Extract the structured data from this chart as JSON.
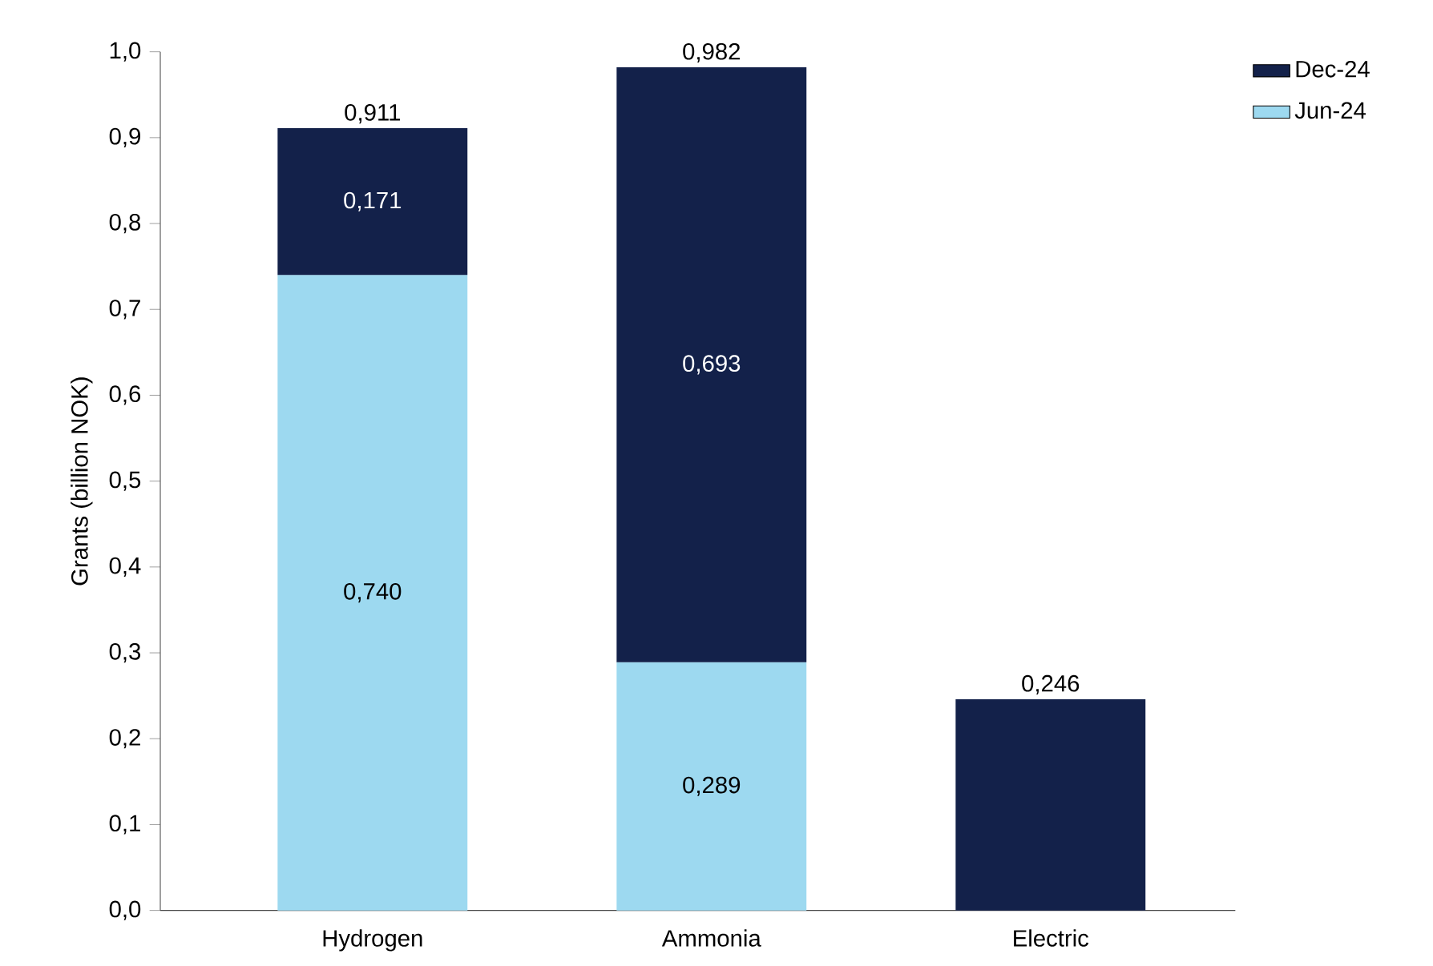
{
  "chart_data": {
    "type": "bar",
    "stacked": true,
    "ylabel": "Grants (billion NOK)",
    "categories": [
      "Hydrogen",
      "Ammonia",
      "Electric"
    ],
    "series": [
      {
        "name": "Jun-24",
        "color": "#9dd9f0",
        "values": [
          0.74,
          0.289,
          null
        ],
        "value_labels": [
          "0,740",
          "0,289",
          null
        ]
      },
      {
        "name": "Dec-24",
        "color": "#13214a",
        "values": [
          0.171,
          0.693,
          0.246
        ],
        "value_labels": [
          "0,171",
          "0,693",
          null
        ]
      }
    ],
    "totals": [
      "0,911",
      "0,982",
      "0,246"
    ],
    "ylim": [
      0,
      1
    ],
    "yticks": [
      {
        "value": 0,
        "label": "0,0"
      },
      {
        "value": 0.1,
        "label": "0,1"
      },
      {
        "value": 0.2,
        "label": "0,2"
      },
      {
        "value": 0.3,
        "label": "0,3"
      },
      {
        "value": 0.4,
        "label": "0,4"
      },
      {
        "value": 0.5,
        "label": "0,5"
      },
      {
        "value": 0.6,
        "label": "0,6"
      },
      {
        "value": 0.7,
        "label": "0,7"
      },
      {
        "value": 0.8,
        "label": "0,8"
      },
      {
        "value": 0.9,
        "label": "0,9"
      },
      {
        "value": 1,
        "label": "1,0"
      }
    ],
    "legend": "top right"
  }
}
